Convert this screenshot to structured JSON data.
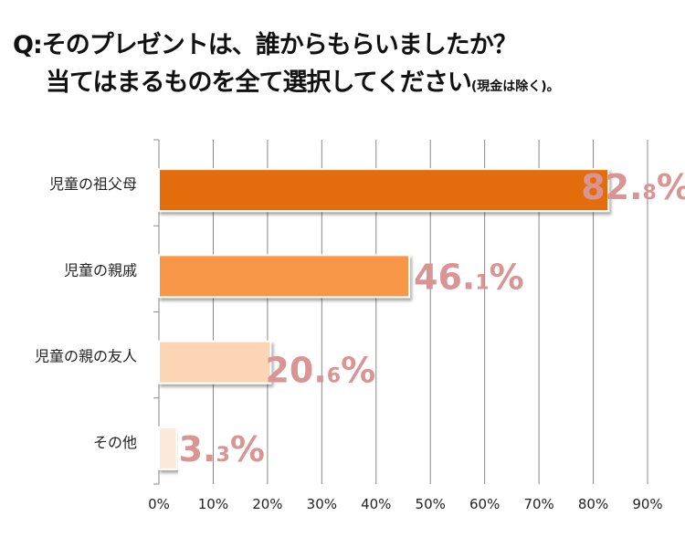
{
  "title": {
    "line1": "Q:そのプレゼントは、誰からもらいましたか？",
    "line2": "当てはまるものを全て選択してください",
    "line2_note": "(現金は除く)。"
  },
  "chart_data": {
    "type": "bar",
    "orientation": "horizontal",
    "categories": [
      "児童の祖父母",
      "児童の親戚",
      "児童の親の友人",
      "その他"
    ],
    "values": [
      82.8,
      46.1,
      20.6,
      3.3
    ],
    "data_labels": [
      {
        "int": "82.",
        "dec": "8",
        "pct": "%"
      },
      {
        "int": "46.",
        "dec": "1",
        "pct": "%"
      },
      {
        "int": "20.",
        "dec": "6",
        "pct": "%"
      },
      {
        "int": "3.",
        "dec": "3",
        "pct": "%"
      }
    ],
    "bar_colors": [
      "#e36c0a",
      "#f79646",
      "#fcd5b5",
      "#fde9d9"
    ],
    "label_color": "#d99594",
    "xlim": [
      0,
      90
    ],
    "x_ticks": [
      "0%",
      "10%",
      "20%",
      "30%",
      "40%",
      "50%",
      "60%",
      "70%",
      "80%",
      "90%"
    ],
    "grid": true,
    "legend": "none"
  }
}
